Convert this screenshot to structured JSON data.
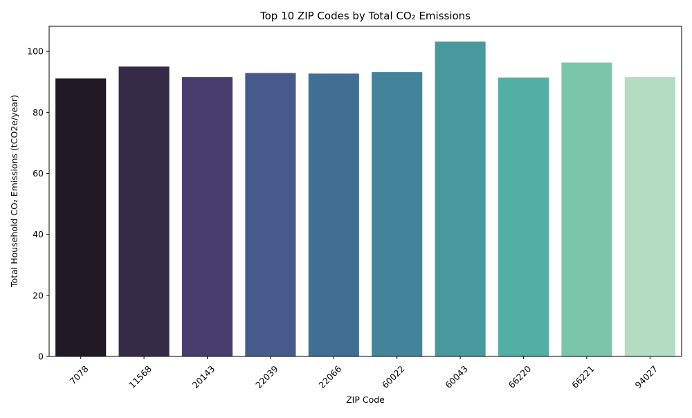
{
  "chart_data": {
    "type": "bar",
    "title": "Top 10 ZIP Codes by Total CO₂ Emissions",
    "xlabel": "ZIP Code",
    "ylabel": "Total Household CO₂ Emissions (tCO2e/year)",
    "categories": [
      "7078",
      "11568",
      "20143",
      "22039",
      "22066",
      "60022",
      "60043",
      "66220",
      "66221",
      "94027"
    ],
    "values": [
      91.1,
      95.0,
      91.6,
      92.9,
      92.7,
      93.2,
      103.2,
      91.4,
      96.3,
      91.6
    ],
    "colors": [
      "#221926",
      "#352b46",
      "#473e6e",
      "#465b8c",
      "#416f94",
      "#43849b",
      "#48999e",
      "#53aea4",
      "#7bc6ab",
      "#b3dcc2"
    ],
    "ylim": [
      0,
      108.2
    ],
    "yticks": [
      0,
      20,
      40,
      60,
      80,
      100
    ],
    "grid": false,
    "legend": "none"
  }
}
